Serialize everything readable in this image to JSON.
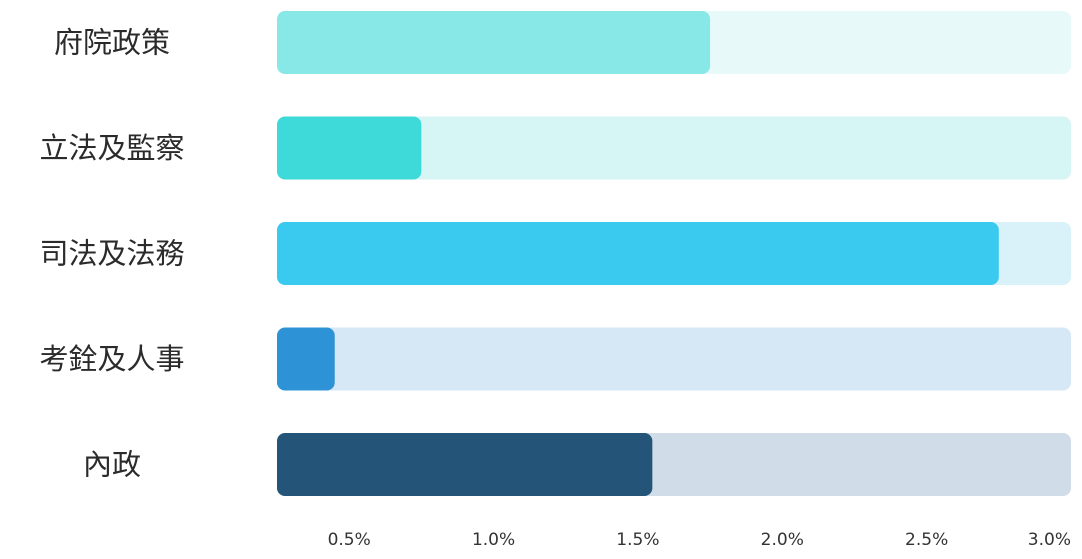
{
  "chart_data": {
    "type": "bar",
    "orientation": "horizontal",
    "categories": [
      "府院政策",
      "立法及監察",
      "司法及法務",
      "考銓及人事",
      "內政"
    ],
    "values": [
      1.75,
      0.75,
      2.75,
      0.45,
      1.55
    ],
    "max_value": 3.0,
    "xticks": [
      0.5,
      1.0,
      1.5,
      2.0,
      2.5,
      3.0
    ],
    "xtick_labels": [
      "0.5%",
      "1.0%",
      "1.5%",
      "2.0%",
      "2.5%",
      "3.0%"
    ],
    "xlim": [
      0.25,
      3.0
    ],
    "grid": false,
    "legend": "none",
    "title": "",
    "xlabel": "",
    "ylabel": "",
    "colors": {
      "fills": [
        "#88e8e8",
        "#3ed9d9",
        "#3ac9ef",
        "#2e93d6",
        "#245478"
      ],
      "tracks": [
        "#e8f9f9",
        "#d6f5f5",
        "#d9f2fa",
        "#d6e7f5",
        "#d0dce7"
      ],
      "label_text": "#2b2b2b",
      "tick_text": "#333333"
    }
  }
}
